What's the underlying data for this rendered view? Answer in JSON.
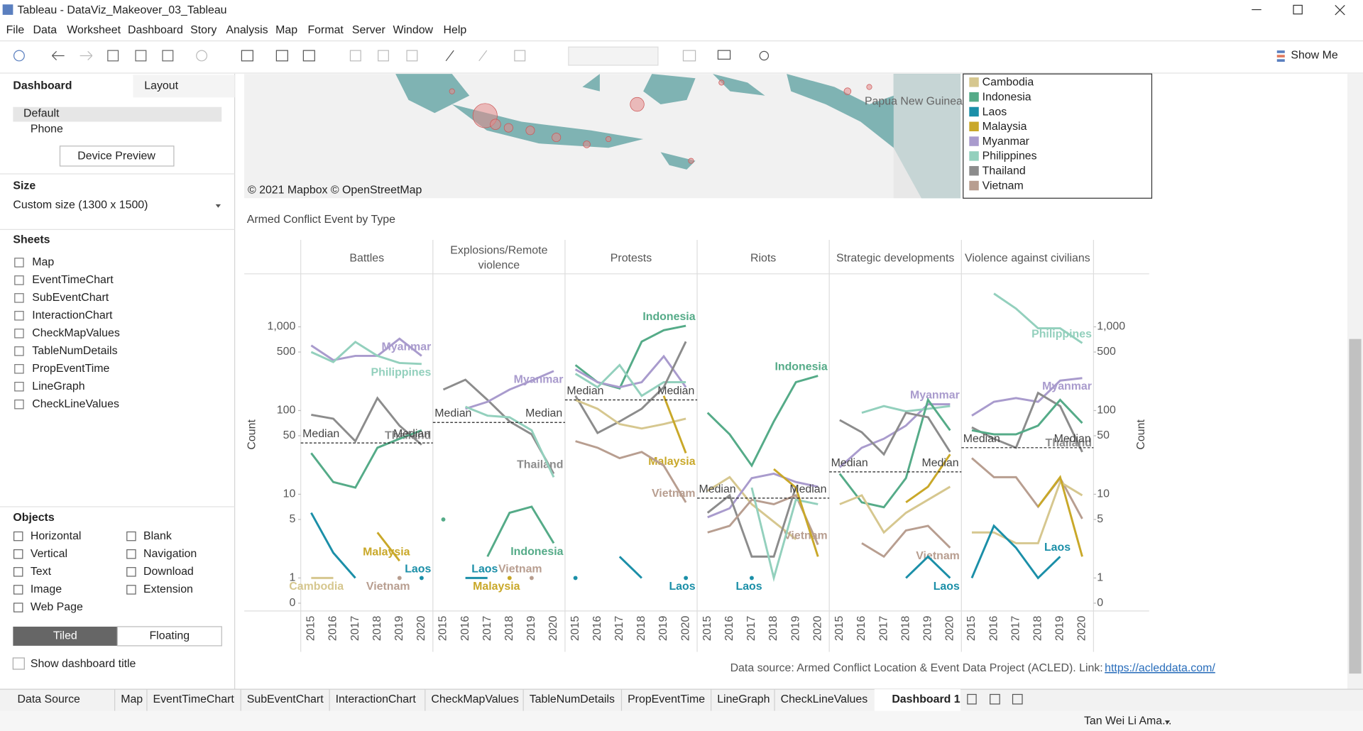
{
  "window": {
    "title": "Tableau - DataViz_Makeover_03_Tableau"
  },
  "menu": [
    "File",
    "Data",
    "Worksheet",
    "Dashboard",
    "Story",
    "Analysis",
    "Map",
    "Format",
    "Server",
    "Window",
    "Help"
  ],
  "toolbar": {
    "show_me": "Show Me"
  },
  "sidebar": {
    "tabs": [
      "Dashboard",
      "Layout"
    ],
    "devices": [
      "Default",
      "Phone"
    ],
    "device_preview": "Device Preview",
    "size_heading": "Size",
    "size_value": "Custom size (1300 x 1500)",
    "sheets_heading": "Sheets",
    "sheets": [
      "Map",
      "EventTimeChart",
      "SubEventChart",
      "InteractionChart",
      "CheckMapValues",
      "TableNumDetails",
      "PropEventTime",
      "LineGraph",
      "CheckLineValues"
    ],
    "objects_heading": "Objects",
    "objects": [
      "Horizontal",
      "Blank",
      "Vertical",
      "Navigation",
      "Text",
      "Download",
      "Image",
      "Extension",
      "Web Page"
    ],
    "layout_modes": [
      "Tiled",
      "Floating"
    ],
    "show_title": "Show dashboard title"
  },
  "map": {
    "attribution": "© 2021 Mapbox © OpenStreetMap",
    "place_label": "Papua New Guinea"
  },
  "legend": {
    "items": [
      {
        "name": "Cambodia",
        "color": "#d6c78f"
      },
      {
        "name": "Indonesia",
        "color": "#55ab88"
      },
      {
        "name": "Laos",
        "color": "#1b8fa8"
      },
      {
        "name": "Malaysia",
        "color": "#c9a829"
      },
      {
        "name": "Myanmar",
        "color": "#a99bcd"
      },
      {
        "name": "Philippines",
        "color": "#93d0bd"
      },
      {
        "name": "Thailand",
        "color": "#8c8c8c"
      },
      {
        "name": "Vietnam",
        "color": "#b89e90"
      }
    ]
  },
  "chart_data": {
    "type": "line",
    "title": "Armed Conflict Event by Type",
    "y_label": "Count",
    "yscale": "log",
    "ylim": [
      0.5,
      4000
    ],
    "yticks": [
      0,
      1,
      5,
      10,
      50,
      100,
      500,
      {
        "value": 1000,
        "label": "1,000"
      }
    ],
    "x": [
      "2015",
      "2016",
      "2017",
      "2018",
      "2019",
      "2020"
    ],
    "median_label": "Median",
    "panels": [
      {
        "name": "Battles",
        "median": 41,
        "series": [
          {
            "name": "Myanmar",
            "color": "#a99bcd",
            "label": true,
            "values": [
              600,
              400,
              450,
              450,
              720,
              450
            ]
          },
          {
            "name": "Philippines",
            "color": "#93d0bd",
            "label": true,
            "values": [
              500,
              380,
              660,
              450,
              370,
              360
            ]
          },
          {
            "name": "Thailand",
            "color": "#8c8c8c",
            "label": true,
            "values": [
              89,
              80,
              43,
              141,
              66,
              39
            ]
          },
          {
            "name": "Indonesia",
            "color": "#55ab88",
            "values": [
              31,
              14,
              12,
              36,
              46,
              58
            ]
          },
          {
            "name": "Laos",
            "color": "#1b8fa8",
            "label": true,
            "values": [
              6,
              2,
              1,
              null,
              null,
              1
            ]
          },
          {
            "name": "Cambodia",
            "color": "#d6c78f",
            "label": true,
            "values": [
              1,
              1,
              null,
              null,
              null,
              null
            ]
          },
          {
            "name": "Malaysia",
            "color": "#c9a829",
            "label": true,
            "values": [
              null,
              null,
              null,
              3.5,
              1.6,
              null
            ]
          },
          {
            "name": "Vietnam",
            "color": "#b89e90",
            "label": true,
            "values": [
              null,
              null,
              null,
              null,
              1,
              null
            ]
          }
        ]
      },
      {
        "name": "Explosions/Remote violence",
        "median": 72,
        "series": [
          {
            "name": "Thailand",
            "color": "#8c8c8c",
            "label": true,
            "values": [
              178,
              233,
              134,
              74,
              52,
              17.6
            ]
          },
          {
            "name": "Myanmar",
            "color": "#a99bcd",
            "label": true,
            "values": [
              null,
              105,
              127,
              178,
              228,
              296
            ]
          },
          {
            "name": "Philippines",
            "color": "#93d0bd",
            "values": [
              null,
              111,
              87,
              83,
              58,
              16
            ]
          },
          {
            "name": "Indonesia",
            "color": "#55ab88",
            "label": true,
            "values": [
              5,
              null,
              1.8,
              6,
              7.1,
              2.6
            ]
          },
          {
            "name": "Laos",
            "color": "#1b8fa8",
            "label": true,
            "values": [
              null,
              1,
              1,
              null,
              null,
              null
            ]
          },
          {
            "name": "Malaysia",
            "color": "#c9a829",
            "label": true,
            "values": [
              null,
              null,
              null,
              1,
              null,
              null
            ]
          },
          {
            "name": "Vietnam",
            "color": "#b89e90",
            "label": true,
            "values": [
              null,
              null,
              null,
              null,
              1,
              null
            ]
          }
        ]
      },
      {
        "name": "Protests",
        "median": 134,
        "series": [
          {
            "name": "Indonesia",
            "color": "#55ab88",
            "label": true,
            "values": [
              349,
              218,
              184,
              666,
              910,
              1030
            ]
          },
          {
            "name": "Myanmar",
            "color": "#a99bcd",
            "values": [
              310,
              218,
              190,
              218,
              445,
              190
            ]
          },
          {
            "name": "Philippines",
            "color": "#93d0bd",
            "values": [
              275,
              190,
              349,
              150,
              218,
              218
            ]
          },
          {
            "name": "Thailand",
            "color": "#8c8c8c",
            "values": [
              150,
              54,
              74,
              105,
              190,
              666
            ]
          },
          {
            "name": "Cambodia",
            "color": "#d6c78f",
            "values": [
              134,
              105,
              69,
              61,
              69,
              80
            ]
          },
          {
            "name": "Malaysia",
            "color": "#c9a829",
            "label": true,
            "values": [
              null,
              null,
              null,
              null,
              150,
              31
            ]
          },
          {
            "name": "Vietnam",
            "color": "#b89e90",
            "label": true,
            "values": [
              43,
              36,
              27,
              32,
              22,
              8
            ]
          },
          {
            "name": "Laos",
            "color": "#1b8fa8",
            "label": true,
            "values": [
              1,
              null,
              1.8,
              1,
              null,
              1
            ]
          }
        ]
      },
      {
        "name": "Riots",
        "median": 9,
        "series": [
          {
            "name": "Indonesia",
            "color": "#55ab88",
            "label": true,
            "values": [
              94,
              52,
              22,
              74,
              218,
              260
            ]
          },
          {
            "name": "Cambodia",
            "color": "#d6c78f",
            "values": [
              11,
              16,
              7.6,
              4.7,
              2.9,
              null
            ]
          },
          {
            "name": "Myanmar",
            "color": "#a99bcd",
            "values": [
              5.3,
              6.8,
              15.6,
              17.6,
              14,
              12.3
            ]
          },
          {
            "name": "Thailand",
            "color": "#8c8c8c",
            "values": [
              6,
              9.7,
              1.8,
              1.8,
              12.3,
              null
            ]
          },
          {
            "name": "Vietnam",
            "color": "#b89e90",
            "label": true,
            "values": [
              3.5,
              4.2,
              8.6,
              7.6,
              9.7,
              2.5
            ]
          },
          {
            "name": "Philippines",
            "color": "#93d0bd",
            "values": [
              null,
              null,
              12,
              1,
              8.6,
              7.6
            ]
          },
          {
            "name": "Malaysia",
            "color": "#c9a829",
            "values": [
              null,
              null,
              null,
              20,
              12,
              1.8
            ]
          },
          {
            "name": "Laos",
            "color": "#1b8fa8",
            "label": true,
            "values": [
              null,
              null,
              1,
              null,
              null,
              null
            ]
          }
        ]
      },
      {
        "name": "Strategic developments",
        "median": 18.5,
        "series": [
          {
            "name": "Myanmar",
            "color": "#a99bcd",
            "label": true,
            "values": [
              21,
              36,
              46,
              66,
              119,
              119
            ]
          },
          {
            "name": "Philippines",
            "color": "#93d0bd",
            "values": [
              null,
              94,
              113,
              98,
              105,
              113
            ]
          },
          {
            "name": "Indonesia",
            "color": "#55ab88",
            "values": [
              17.6,
              8,
              7,
              15.6,
              134,
              58
            ]
          },
          {
            "name": "Thailand",
            "color": "#8c8c8c",
            "values": [
              77,
              55,
              30,
              94,
              83,
              32
            ]
          },
          {
            "name": "Cambodia",
            "color": "#d6c78f",
            "values": [
              7.6,
              9.7,
              3.5,
              6,
              8.6,
              12.3
            ]
          },
          {
            "name": "Vietnam",
            "color": "#b89e90",
            "label": true,
            "values": [
              null,
              2.6,
              1.8,
              3.7,
              4.2,
              2.3
            ]
          },
          {
            "name": "Malaysia",
            "color": "#c9a829",
            "values": [
              null,
              null,
              null,
              8,
              12.3,
              30
            ]
          },
          {
            "name": "Laos",
            "color": "#1b8fa8",
            "label": true,
            "values": [
              null,
              null,
              null,
              1,
              1.8,
              1
            ]
          }
        ]
      },
      {
        "name": "Violence against civilians",
        "median": 36,
        "series": [
          {
            "name": "Philippines",
            "color": "#93d0bd",
            "label": true,
            "values": [
              null,
              2500,
              1650,
              960,
              960,
              640
            ]
          },
          {
            "name": "Myanmar",
            "color": "#a99bcd",
            "label": true,
            "values": [
              87,
              127,
              141,
              127,
              228,
              244
            ]
          },
          {
            "name": "Thailand",
            "color": "#8c8c8c",
            "label": true,
            "values": [
              63,
              46,
              36,
              162,
              113,
              32
            ]
          },
          {
            "name": "Indonesia",
            "color": "#55ab88",
            "values": [
              58,
              52,
              52,
              66,
              134,
              71
            ]
          },
          {
            "name": "Vietnam",
            "color": "#b89e90",
            "values": [
              27,
              16,
              16,
              7.1,
              15.6,
              5.1
            ]
          },
          {
            "name": "Cambodia",
            "color": "#d6c78f",
            "values": [
              3.5,
              3.5,
              2.6,
              2.6,
              14,
              9.7
            ]
          },
          {
            "name": "Laos",
            "color": "#1b8fa8",
            "label": true,
            "values": [
              1,
              4.2,
              2.3,
              1,
              1.8,
              null
            ]
          },
          {
            "name": "Malaysia",
            "color": "#c9a829",
            "values": [
              null,
              null,
              null,
              7.1,
              16,
              1.8
            ]
          }
        ]
      }
    ]
  },
  "footer": {
    "source": "Data source: Armed Conflict Location & Event Data Project (ACLED). Link: ",
    "link": "https://acleddata.com/"
  },
  "tabs": {
    "data_source": "Data Source",
    "active": "Dashboard 1"
  },
  "status": {
    "user": "Tan Wei Li Ama..."
  }
}
